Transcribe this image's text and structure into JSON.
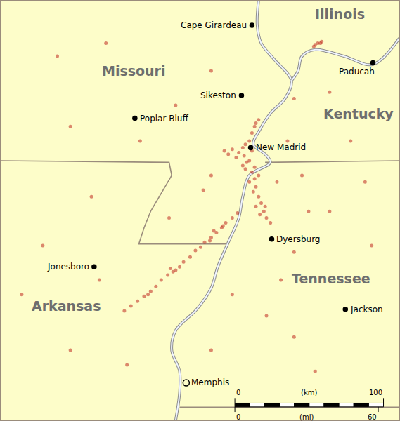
{
  "chart_data": {
    "type": "map",
    "xlim": [
      -91.43,
      -88.4
    ],
    "ylim": [
      34.92,
      37.49
    ],
    "tick_labels": false,
    "grid": false,
    "earthquakes": {
      "color": "#c0281e",
      "marker": "circle",
      "x": [
        -89.63,
        -89.67,
        -89.72,
        -89.75,
        -89.79,
        -89.83,
        -89.88,
        -89.91,
        -89.95,
        -89.99,
        -90.04,
        -90.07,
        -90.12,
        -90.16,
        -90.21,
        -90.25,
        -90.29,
        -90.34,
        -90.39,
        -90.44,
        -90.49,
        -89.74,
        -89.81,
        -89.84,
        -90.1,
        -90.14,
        -90.31,
        -89.73,
        -89.67,
        -89.62,
        -89.58,
        -89.54,
        -89.57,
        -89.52,
        -89.5,
        -89.49,
        -89.51,
        -89.47,
        -89.45,
        -89.49,
        -89.43,
        -89.41,
        -89.38,
        -89.46,
        -89.56,
        -89.59,
        -89.5,
        -89.42,
        -89.54,
        -89.47,
        -89.52,
        -89.64,
        -89.7,
        -89.54,
        -89.52,
        -89.5,
        -89.49,
        -89.57,
        -89.59,
        -89.47,
        -89.05,
        -89.02,
        -88.99,
        -89.04,
        -89.0,
        -91.0,
        -90.63,
        -89.83,
        -89.2,
        -88.93,
        -88.77,
        -88.66,
        -89.09,
        -89.2,
        -89.67,
        -89.41,
        -89.2,
        -90.74,
        -91.11,
        -91.27,
        -90.9,
        -90.47,
        -89.83,
        -89.04,
        -88.61,
        -90.1,
        -90.37,
        -88.93,
        -89.25,
        -89.33,
        -89.83,
        -89.89,
        -89.14,
        -90.9,
        -90.15,
        -89.3,
        -90.68
      ],
      "y": [
        36.19,
        36.16,
        36.13,
        36.1,
        36.07,
        36.04,
        36.01,
        35.98,
        35.96,
        35.92,
        35.89,
        35.86,
        35.83,
        35.81,
        35.78,
        35.74,
        35.71,
        35.68,
        35.65,
        35.62,
        35.59,
        36.11,
        36.08,
        36.02,
        35.84,
        35.85,
        35.69,
        36.57,
        36.58,
        36.56,
        36.54,
        36.51,
        36.46,
        36.44,
        36.4,
        36.35,
        36.32,
        36.29,
        36.25,
        36.23,
        36.2,
        36.16,
        36.13,
        36.18,
        36.5,
        36.48,
        36.47,
        36.23,
        36.38,
        36.42,
        36.57,
        36.53,
        36.55,
        36.63,
        36.68,
        36.72,
        36.74,
        36.61,
        36.59,
        36.76,
        37.21,
        37.23,
        37.24,
        37.22,
        37.23,
        37.15,
        37.23,
        37.06,
        36.89,
        36.93,
        36.63,
        36.38,
        36.2,
        35.95,
        35.69,
        35.56,
        35.43,
        36.29,
        35.99,
        35.69,
        35.35,
        35.26,
        35.35,
        35.22,
        35.99,
        36.85,
        36.63,
        36.2,
        36.63,
        36.38,
        36.42,
        36.33,
        36.42,
        36.72,
        36.16,
        35.78,
        35.78
      ]
    },
    "states": [
      {
        "label": "Missouri",
        "x": -90.42,
        "y": 37.06
      },
      {
        "label": "Illinois",
        "x": -88.85,
        "y": 37.41
      },
      {
        "label": "Kentucky",
        "x": -88.71,
        "y": 36.8
      },
      {
        "label": "Tennessee",
        "x": -88.92,
        "y": 35.79
      },
      {
        "label": "Arkansas",
        "x": -90.93,
        "y": 35.62
      }
    ],
    "cities": [
      {
        "label": "Cape Girardeau",
        "x": -89.52,
        "y": 37.34,
        "marker": "circle"
      },
      {
        "label": "Paducah",
        "x": -88.6,
        "y": 37.11,
        "marker": "circle"
      },
      {
        "label": "Sikeston",
        "x": -89.6,
        "y": 36.91,
        "marker": "circle"
      },
      {
        "label": "Poplar Bluff",
        "x": -90.41,
        "y": 36.77,
        "marker": "circle"
      },
      {
        "label": "New Madrid",
        "x": -89.53,
        "y": 36.59,
        "marker": "circle"
      },
      {
        "label": "Dyersburg",
        "x": -89.37,
        "y": 36.03,
        "marker": "circle"
      },
      {
        "label": "Jonesboro",
        "x": -90.72,
        "y": 35.86,
        "marker": "circle"
      },
      {
        "label": "Jackson",
        "x": -88.81,
        "y": 35.6,
        "marker": "circle"
      },
      {
        "label": "Memphis",
        "x": -90.02,
        "y": 35.15,
        "marker": "circle-open"
      }
    ],
    "borders": [
      {
        "x": [
          -91.43,
          -90.15,
          -90.13,
          -90.21,
          -90.29,
          -90.34,
          -90.38,
          -89.7
        ],
        "y": [
          36.51,
          36.5,
          36.42,
          36.31,
          36.2,
          36.1,
          36.0,
          36.0
        ]
      },
      {
        "x": [
          -89.42,
          -88.4
        ],
        "y": [
          36.5,
          36.51
        ]
      },
      {
        "x": [
          -90.07,
          -88.4
        ],
        "y": [
          35.0,
          35.0
        ]
      }
    ],
    "rivers": [
      {
        "x": [
          -89.47,
          -89.48,
          -89.45,
          -89.35,
          -89.22,
          -89.27,
          -89.38,
          -89.46,
          -89.51,
          -89.42,
          -89.38,
          -89.54,
          -89.59,
          -89.62,
          -89.7,
          -89.78,
          -89.83,
          -89.94,
          -90.1,
          -90.13,
          -90.07,
          -90.07,
          -90.1
        ],
        "y": [
          37.49,
          37.34,
          37.23,
          37.13,
          37.0,
          36.89,
          36.8,
          36.7,
          36.61,
          36.55,
          36.5,
          36.42,
          36.29,
          36.16,
          36.01,
          35.86,
          35.73,
          35.6,
          35.47,
          35.35,
          35.22,
          35.09,
          34.92
        ]
      },
      {
        "x": [
          -88.4,
          -88.6,
          -88.82,
          -89.04,
          -89.14,
          -89.17,
          -89.22
        ],
        "y": [
          37.26,
          37.1,
          37.15,
          37.19,
          37.15,
          37.06,
          37.0
        ]
      }
    ],
    "scale_bar": {
      "km": {
        "unit": "(km)",
        "ticks": [
          0,
          100
        ],
        "x": [
          -89.65,
          -88.52
        ]
      },
      "mi": {
        "unit": "(mi)",
        "ticks": [
          0,
          60
        ],
        "x": [
          -89.65,
          -88.56
        ]
      }
    }
  }
}
